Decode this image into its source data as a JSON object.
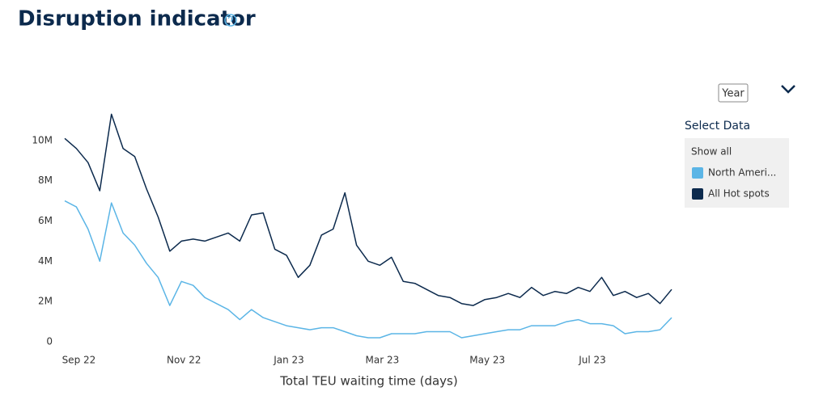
{
  "chart_data": {
    "type": "line",
    "title": "Disruption indicator",
    "x_label": "Total TEU waiting time (days)",
    "categories": [
      null,
      "Sep 22",
      null,
      null,
      null,
      null,
      null,
      null,
      null,
      null,
      "Nov 22",
      null,
      null,
      null,
      null,
      null,
      null,
      null,
      null,
      "Jan 23",
      null,
      null,
      null,
      null,
      null,
      null,
      null,
      "Mar 23",
      null,
      null,
      null,
      null,
      null,
      null,
      null,
      null,
      "May 23",
      null,
      null,
      null,
      null,
      null,
      null,
      null,
      null,
      "Jul 23",
      null,
      null,
      null,
      null,
      null,
      null,
      null
    ],
    "series": [
      {
        "name": "North Ameri...",
        "color": "#5bb5e6",
        "values": [
          7.0,
          6.7,
          5.6,
          4.0,
          6.9,
          5.4,
          4.8,
          3.9,
          3.2,
          1.8,
          3.0,
          2.8,
          2.2,
          1.9,
          1.6,
          1.1,
          1.6,
          1.2,
          1.0,
          0.8,
          0.7,
          0.6,
          0.7,
          0.7,
          0.5,
          0.3,
          0.2,
          0.2,
          0.4,
          0.4,
          0.4,
          0.5,
          0.5,
          0.5,
          0.2,
          0.3,
          0.4,
          0.5,
          0.6,
          0.6,
          0.8,
          0.8,
          0.8,
          1.0,
          1.1,
          0.9,
          0.9,
          0.8,
          0.4,
          0.5,
          0.5,
          0.6,
          1.2
        ]
      },
      {
        "name": "All Hot spots",
        "color": "#0c2a4d",
        "values": [
          10.1,
          9.6,
          8.9,
          7.5,
          11.3,
          9.6,
          9.2,
          7.6,
          6.2,
          4.5,
          5.0,
          5.1,
          5.0,
          5.2,
          5.4,
          5.0,
          6.3,
          6.4,
          4.6,
          4.3,
          3.2,
          3.8,
          5.3,
          5.6,
          7.4,
          4.8,
          4.0,
          3.8,
          4.2,
          3.0,
          2.9,
          2.6,
          2.3,
          2.2,
          1.9,
          1.8,
          2.1,
          2.2,
          2.4,
          2.2,
          2.7,
          2.3,
          2.5,
          2.4,
          2.7,
          2.5,
          3.2,
          2.3,
          2.5,
          2.2,
          2.4,
          1.9,
          2.6
        ]
      }
    ],
    "ylim": [
      0,
      12
    ],
    "yticks": [
      0,
      {
        "value": 2,
        "label": "2M"
      },
      {
        "value": 4,
        "label": "4M"
      },
      {
        "value": 6,
        "label": "6M"
      },
      {
        "value": 8,
        "label": "8M"
      },
      {
        "value": 10,
        "label": "10M"
      }
    ],
    "grid": false
  },
  "controls": {
    "period": "Year",
    "select_label": "Select Data",
    "show_all": "Show all"
  }
}
